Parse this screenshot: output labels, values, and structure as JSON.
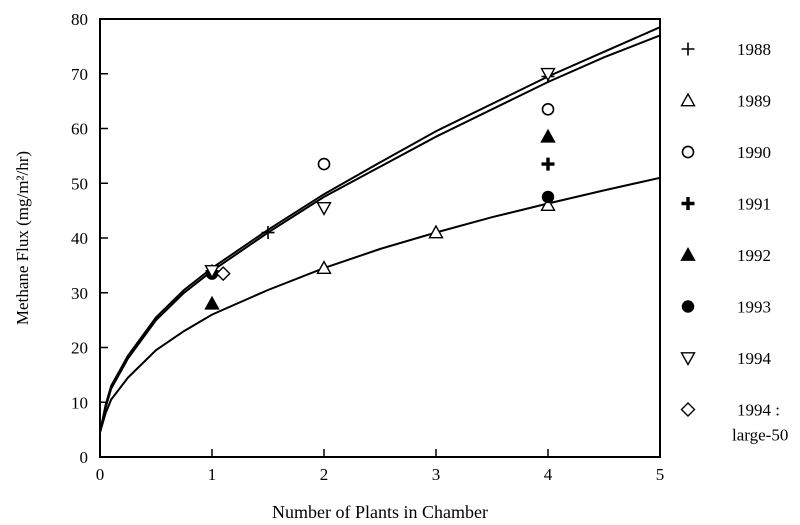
{
  "chart_data": {
    "type": "scatter",
    "xlabel": "Number of Plants in Chamber",
    "ylabel": "Methane Flux (mg/m²/hr)",
    "xlim": [
      0,
      5
    ],
    "ylim": [
      0,
      80
    ],
    "x_ticks": [
      "0",
      "1",
      "2",
      "3",
      "4",
      "5"
    ],
    "y_ticks": [
      "0",
      "10",
      "20",
      "30",
      "40",
      "50",
      "60",
      "70",
      "80"
    ],
    "grid": false,
    "legend_position": "right",
    "series": [
      {
        "name": "1988",
        "marker": "plus-thin",
        "points": [
          [
            1,
            34
          ],
          [
            1.5,
            41
          ],
          [
            4,
            69.5
          ]
        ]
      },
      {
        "name": "1989",
        "marker": "triangle-up-open",
        "points": [
          [
            2,
            34.5
          ],
          [
            3,
            41
          ],
          [
            4,
            46
          ]
        ]
      },
      {
        "name": "1990",
        "marker": "circle-open",
        "points": [
          [
            2,
            53.5
          ],
          [
            4,
            63.5
          ]
        ]
      },
      {
        "name": "1991",
        "marker": "plus-bold",
        "points": [
          [
            4,
            53.5
          ]
        ]
      },
      {
        "name": "1992",
        "marker": "triangle-up-filled",
        "points": [
          [
            1,
            28
          ],
          [
            4,
            58.5
          ]
        ]
      },
      {
        "name": "1993",
        "marker": "circle-filled",
        "points": [
          [
            1,
            33.5
          ],
          [
            4,
            47.5
          ]
        ]
      },
      {
        "name": "1994",
        "marker": "triangle-down-open",
        "points": [
          [
            1,
            34
          ],
          [
            2,
            45.5
          ],
          [
            4,
            70
          ]
        ]
      },
      {
        "name": "1994 : large-50",
        "marker": "diamond-open",
        "points": [
          [
            1.1,
            33.5
          ]
        ]
      }
    ],
    "fit_curves": [
      {
        "points": [
          [
            0,
            4.5
          ],
          [
            0.05,
            9
          ],
          [
            0.1,
            12.5
          ],
          [
            0.25,
            18
          ],
          [
            0.5,
            25
          ],
          [
            0.75,
            30
          ],
          [
            1,
            34
          ],
          [
            1.5,
            41
          ],
          [
            2,
            47.5
          ],
          [
            2.5,
            53
          ],
          [
            3,
            58.5
          ],
          [
            3.5,
            63.5
          ],
          [
            4,
            68.5
          ],
          [
            4.5,
            73
          ],
          [
            5,
            77
          ]
        ]
      },
      {
        "points": [
          [
            0,
            4.5
          ],
          [
            0.05,
            9.5
          ],
          [
            0.1,
            13
          ],
          [
            0.25,
            18.5
          ],
          [
            0.5,
            25.5
          ],
          [
            0.75,
            30.5
          ],
          [
            1,
            34.5
          ],
          [
            1.5,
            41.5
          ],
          [
            2,
            48
          ],
          [
            2.5,
            53.8
          ],
          [
            3,
            59.5
          ],
          [
            3.5,
            64.5
          ],
          [
            4,
            69.5
          ],
          [
            4.5,
            74
          ],
          [
            5,
            78.5
          ]
        ]
      },
      {
        "points": [
          [
            0,
            4.5
          ],
          [
            0.05,
            8
          ],
          [
            0.1,
            10.5
          ],
          [
            0.25,
            14.5
          ],
          [
            0.5,
            19.5
          ],
          [
            0.75,
            23
          ],
          [
            1,
            26
          ],
          [
            1.5,
            30.5
          ],
          [
            2,
            34.5
          ],
          [
            2.5,
            38
          ],
          [
            3,
            41
          ],
          [
            3.5,
            43.8
          ],
          [
            4,
            46.3
          ],
          [
            4.5,
            48.7
          ],
          [
            5,
            51
          ]
        ]
      }
    ]
  }
}
